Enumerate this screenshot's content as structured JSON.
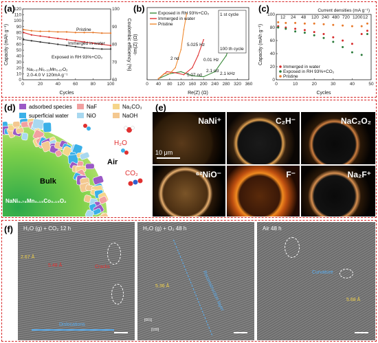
{
  "panels": {
    "a": {
      "label": "(a)",
      "legend": [
        "Pristine",
        "Immerged in water",
        "Exposed in RH 93%+CO₂"
      ],
      "annotation_1": "Na₀.₆₇Ni₀.₃₃Mn₀.₆₇O₂",
      "annotation_2": "2.0-4.0 V 120mA g⁻¹",
      "xlabel": "Cycles",
      "ylabel_left": "Capacity (mAh g⁻¹)",
      "ylabel_right": "Coulombic efficiency (%)"
    },
    "b": {
      "label": "(b)",
      "legend": [
        "Exposed in RH 93%+CO₂",
        "Immerged in water",
        "Pristine"
      ],
      "annotations": [
        "2 nd",
        "0.01 Hz",
        "100 th cycle",
        "2.1 nd",
        "2.1 kHz",
        "1 st cycle",
        "5.07 nd",
        "5.025 Hz"
      ],
      "xlabel": "Re(Z) (Ω)",
      "ylabel": "-Im(Z) (Ω)"
    },
    "c": {
      "label": "(c)",
      "title": "Current densities (mA g⁻¹)",
      "rate_labels": [
        "12",
        "24",
        "48",
        "120",
        "240",
        "480",
        "720",
        "1200",
        "12"
      ],
      "legend": [
        "Immerged in water",
        "Exposed in RH 93%+CO₂",
        "Pristine"
      ],
      "xlabel": "Cycles",
      "ylabel": "Capacity (mAh g⁻¹)"
    },
    "d": {
      "label": "(d)",
      "legend": [
        "adsorbed species",
        "NaF",
        "Na₂CO₃",
        "superficial water",
        "NiO",
        "NaOH"
      ],
      "labels": {
        "h2o": "H₂O",
        "air": "Air",
        "co2": "CO₂",
        "bulk": "Bulk",
        "material": "NaNi₀.₇₈Mn₀.₁₅Co₀.₁₅O₂"
      }
    },
    "e": {
      "label": "(e)",
      "tiles": [
        "NaNi⁺",
        "C₂H⁻",
        "NaC₂O₂",
        "⁶²NiO⁻",
        "F⁻",
        "Na₂F⁺"
      ],
      "scale": "10 μm"
    },
    "f": {
      "label": "(f)",
      "image1": {
        "caption": "H₂O (g) + CO₂ 12 h",
        "labels": [
          "2.67 Å",
          "5.48 Å",
          "Cracks",
          "Dislocations"
        ]
      },
      "image2": {
        "caption": "H₂O (g) + O₂ 48 h",
        "labels": [
          "5.36 Å",
          "Reconstruction layer",
          "[001]",
          "[100]"
        ]
      },
      "image3": {
        "caption": "Air 48 h",
        "labels": [
          "Curvature",
          "5.68 Å"
        ]
      }
    }
  },
  "chart_data": [
    {
      "type": "scatter",
      "panel": "a",
      "xlabel": "Cycles",
      "ylabel": "Capacity (mAh g⁻¹)",
      "xlim": [
        0,
        100
      ],
      "ylim": [
        0,
        120
      ],
      "x_ticks": [
        0,
        20,
        40,
        60,
        80,
        100
      ],
      "y_ticks": [
        0,
        10,
        20,
        30,
        40,
        50,
        60,
        70,
        80,
        90,
        100,
        110,
        120
      ],
      "y2_ticks": [
        60,
        70,
        80,
        90,
        100
      ],
      "series": [
        {
          "name": "Pristine",
          "color": "#e8792a",
          "x": [
            1,
            10,
            20,
            30,
            40,
            50,
            60,
            70,
            80,
            90,
            100
          ],
          "y": [
            85,
            83,
            82,
            82,
            81,
            81,
            80,
            80,
            80,
            79,
            79
          ]
        },
        {
          "name": "Immerged in water",
          "color": "#d62a2a",
          "x": [
            1,
            10,
            20,
            30,
            40,
            50,
            60,
            70,
            80,
            90,
            100
          ],
          "y": [
            80,
            76,
            74,
            72,
            70,
            68,
            66,
            64,
            62,
            60,
            58
          ]
        },
        {
          "name": "Exposed in RH 93%+CO₂",
          "color": "#333333",
          "x": [
            1,
            10,
            20,
            30,
            40,
            50,
            60,
            70,
            80,
            90,
            100
          ],
          "y": [
            68,
            66,
            64,
            62,
            60,
            58,
            56,
            54,
            53,
            52,
            52
          ]
        }
      ]
    },
    {
      "type": "line",
      "panel": "b",
      "xlabel": "Re(Z) (Ω)",
      "ylabel": "-Im(Z) (Ω)",
      "xlim": [
        0,
        360
      ],
      "ylim": [
        0,
        360
      ],
      "x_ticks": [
        0,
        40,
        80,
        120,
        160,
        200,
        240,
        280,
        320,
        360
      ],
      "series": [
        {
          "name": "Exposed in RH 93%+CO₂",
          "color": "#3a8a3a",
          "x": [
            40,
            80,
            120,
            160,
            200,
            240,
            280,
            300
          ],
          "y": [
            5,
            30,
            40,
            20,
            15,
            40,
            120,
            200
          ]
        },
        {
          "name": "Immerged in water",
          "color": "#e03030",
          "x": [
            40,
            70,
            100,
            130,
            160,
            180,
            200
          ],
          "y": [
            5,
            40,
            35,
            25,
            60,
            120,
            200
          ]
        },
        {
          "name": "Pristine",
          "color": "#f08a30",
          "x": [
            40,
            60,
            80,
            100,
            120,
            130,
            140
          ],
          "y": [
            5,
            30,
            30,
            60,
            150,
            250,
            330
          ]
        }
      ]
    },
    {
      "type": "scatter",
      "panel": "c",
      "xlabel": "Cycles",
      "ylabel": "Capacity (mAh g⁻¹)",
      "xlim": [
        0,
        50
      ],
      "ylim": [
        0,
        100
      ],
      "x_ticks": [
        0,
        10,
        20,
        30,
        40,
        50
      ],
      "y_ticks": [
        0,
        20,
        40,
        60,
        80,
        100
      ],
      "series": [
        {
          "name": "Immerged in water",
          "color": "#d62a2a",
          "x": [
            1,
            5,
            10,
            15,
            20,
            25,
            30,
            35,
            40,
            45,
            48
          ],
          "y": [
            82,
            80,
            78,
            76,
            73,
            70,
            65,
            60,
            55,
            70,
            75
          ]
        },
        {
          "name": "Exposed in RH 93%+CO₂",
          "color": "#2a7a3a",
          "x": [
            1,
            5,
            10,
            15,
            20,
            25,
            30,
            35,
            40,
            45,
            48
          ],
          "y": [
            80,
            78,
            74,
            72,
            68,
            64,
            58,
            50,
            42,
            38,
            70
          ]
        },
        {
          "name": "Pristine",
          "color": "#e8792a",
          "x": [
            1,
            5,
            10,
            15,
            20,
            25,
            30,
            35,
            40,
            45,
            48
          ],
          "y": [
            88,
            87,
            87,
            86,
            86,
            85,
            84,
            83,
            82,
            82,
            86
          ]
        }
      ]
    }
  ]
}
